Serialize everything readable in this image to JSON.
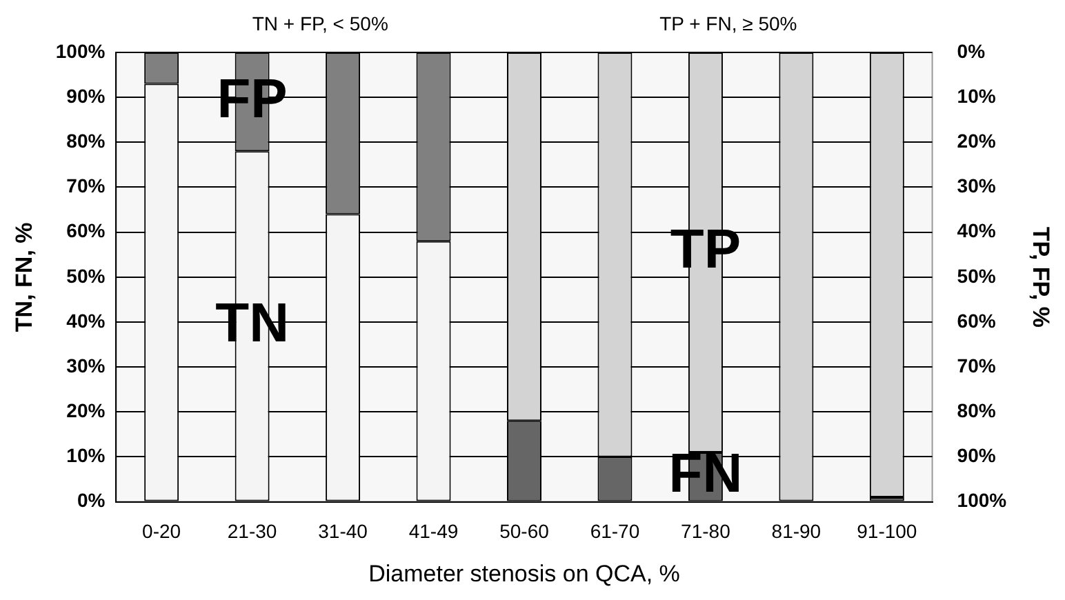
{
  "chart_data": {
    "type": "bar",
    "stacked": true,
    "xlabel": "Diameter stenosis on QCA, %",
    "ylabel": "TN, FN, %",
    "y2label": "TP, FP, %",
    "categories": [
      "0-20",
      "21-30",
      "31-40",
      "41-49",
      "50-60",
      "61-70",
      "71-80",
      "81-90",
      "91-100"
    ],
    "series": [
      {
        "name": "TN",
        "color": "#f4f4f4",
        "values": [
          93,
          78,
          64,
          58,
          null,
          null,
          null,
          null,
          null
        ]
      },
      {
        "name": "FN",
        "color": "#666666",
        "values": [
          null,
          null,
          null,
          null,
          18,
          10,
          11,
          0,
          1
        ]
      },
      {
        "name": "FP",
        "color": "#808080",
        "values": [
          7,
          22,
          36,
          42,
          null,
          null,
          null,
          null,
          null
        ]
      },
      {
        "name": "TP",
        "color": "#d3d3d3",
        "values": [
          null,
          null,
          null,
          null,
          82,
          90,
          89,
          100,
          99
        ]
      }
    ],
    "ylim": [
      0,
      100
    ],
    "yticks": [
      {
        "value": 0,
        "label": "0%"
      },
      {
        "value": 10,
        "label": "10%"
      },
      {
        "value": 20,
        "label": "20%"
      },
      {
        "value": 30,
        "label": "30%"
      },
      {
        "value": 40,
        "label": "40%"
      },
      {
        "value": 50,
        "label": "50%"
      },
      {
        "value": 60,
        "label": "60%"
      },
      {
        "value": 70,
        "label": "70%"
      },
      {
        "value": 80,
        "label": "80%"
      },
      {
        "value": 90,
        "label": "90%"
      },
      {
        "value": 100,
        "label": "100%"
      }
    ],
    "y2lim": [
      100,
      0
    ],
    "y2ticks": [
      {
        "value": 0,
        "label": "0%"
      },
      {
        "value": 10,
        "label": "10%"
      },
      {
        "value": 20,
        "label": "20%"
      },
      {
        "value": 30,
        "label": "30%"
      },
      {
        "value": 40,
        "label": "40%"
      },
      {
        "value": 50,
        "label": "50%"
      },
      {
        "value": 60,
        "label": "60%"
      },
      {
        "value": 70,
        "label": "70%"
      },
      {
        "value": 80,
        "label": "80%"
      },
      {
        "value": 90,
        "label": "90%"
      },
      {
        "value": 100,
        "label": "100%"
      }
    ],
    "grid": "y",
    "legend": false,
    "annotations": [
      "TN + FP, < 50%",
      "TP + FN, ≥ 50%"
    ]
  }
}
